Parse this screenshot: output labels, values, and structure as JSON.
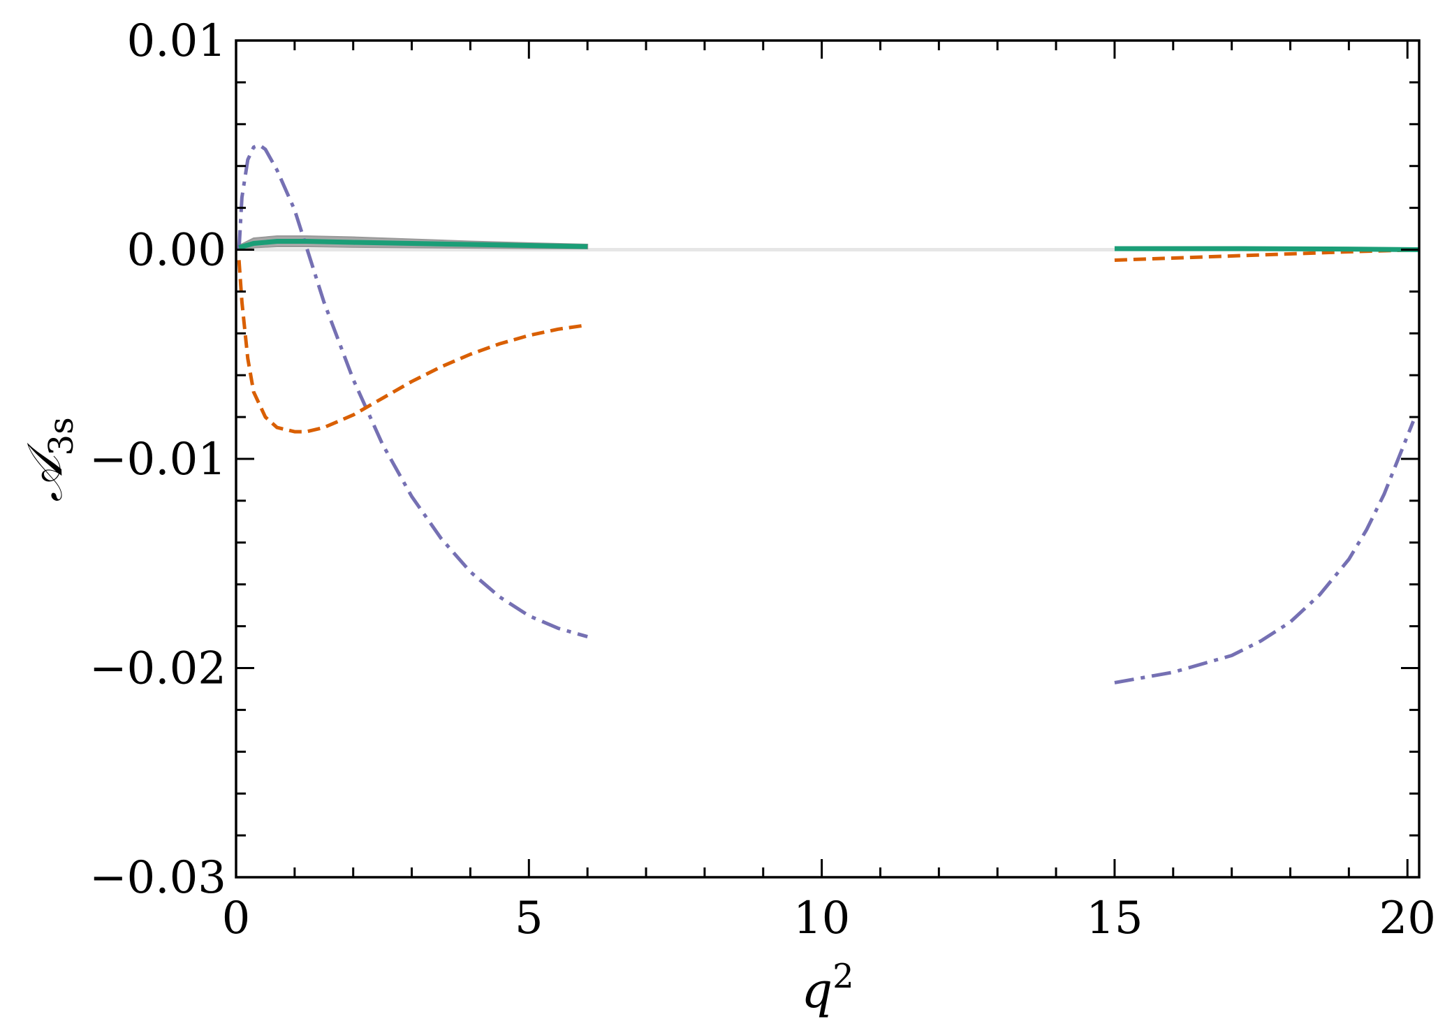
{
  "chart_data": {
    "type": "line",
    "title": "",
    "xlabel": {
      "base": "q",
      "sup": "2"
    },
    "ylabel": {
      "base": "𝒜",
      "sub": "3s"
    },
    "xlim": [
      0,
      20.2
    ],
    "ylim": [
      -0.03,
      0.01
    ],
    "x_ticks": [
      {
        "value": 0,
        "label": "0"
      },
      {
        "value": 5,
        "label": "5"
      },
      {
        "value": 10,
        "label": "10"
      },
      {
        "value": 15,
        "label": "15"
      },
      {
        "value": 20,
        "label": "20"
      }
    ],
    "y_ticks": [
      {
        "value": 0.01,
        "label": "0.01"
      },
      {
        "value": 0.0,
        "label": "0.00"
      },
      {
        "value": -0.01,
        "label": "−0.01"
      },
      {
        "value": -0.02,
        "label": "−0.02"
      },
      {
        "value": -0.03,
        "label": "−0.03"
      }
    ],
    "x_minor_step": 1,
    "y_minor_step": 0.002,
    "grid": false,
    "colors": {
      "dashdot": "#7570b3",
      "dashed": "#d95f02",
      "solid": "#1b9e77",
      "band": "#999999",
      "zero_line": "#e6e6e6"
    },
    "series": [
      {
        "style": "dashdot",
        "color": "#7570b3",
        "segments": [
          {
            "x": [
              0.05,
              0.1,
              0.2,
              0.3,
              0.4,
              0.5,
              0.7,
              1.0,
              1.5,
              2.0,
              2.5,
              3.0,
              3.5,
              4.0,
              4.5,
              5.0,
              5.5,
              6.0
            ],
            "y": [
              0.0,
              0.0025,
              0.0043,
              0.0049,
              0.005,
              0.0048,
              0.0038,
              0.0019,
              -0.0025,
              -0.0062,
              -0.0093,
              -0.0118,
              -0.0138,
              -0.0154,
              -0.0166,
              -0.0175,
              -0.0181,
              -0.0185
            ]
          },
          {
            "x": [
              15.0,
              16.0,
              17.0,
              17.5,
              18.0,
              18.5,
              19.0,
              19.3,
              19.6,
              19.9,
              20.1
            ],
            "y": [
              -0.0207,
              -0.0202,
              -0.0194,
              -0.0187,
              -0.0178,
              -0.0165,
              -0.0148,
              -0.0134,
              -0.0117,
              -0.0096,
              -0.0082
            ]
          }
        ]
      },
      {
        "style": "dashed",
        "color": "#d95f02",
        "segments": [
          {
            "x": [
              0.05,
              0.1,
              0.2,
              0.3,
              0.5,
              0.7,
              1.0,
              1.2,
              1.5,
              2.0,
              2.5,
              3.0,
              3.5,
              4.0,
              4.5,
              5.0,
              5.5,
              6.0
            ],
            "y": [
              -0.0005,
              -0.0025,
              -0.0052,
              -0.0068,
              -0.008,
              -0.0085,
              -0.0087,
              -0.0087,
              -0.0085,
              -0.0079,
              -0.0071,
              -0.0063,
              -0.0056,
              -0.005,
              -0.0045,
              -0.0041,
              -0.0038,
              -0.0036
            ]
          },
          {
            "x": [
              15.0,
              16.0,
              17.0,
              18.0,
              19.0,
              20.0,
              20.2
            ],
            "y": [
              -0.0005,
              -0.0004,
              -0.0003,
              -0.0002,
              -0.0001,
              -2e-05,
              0.0
            ]
          }
        ]
      },
      {
        "style": "solid",
        "color": "#1b9e77",
        "segments": [
          {
            "x": [
              0.05,
              0.3,
              0.7,
              1.2,
              2.0,
              3.0,
              4.0,
              5.0,
              6.0
            ],
            "y": [
              0.0001,
              0.0003,
              0.0004,
              0.0004,
              0.00035,
              0.0003,
              0.00025,
              0.0002,
              0.00015
            ]
          },
          {
            "x": [
              15.0,
              17.0,
              19.0,
              20.2
            ],
            "y": [
              5e-05,
              5e-05,
              3e-05,
              0.0
            ]
          }
        ]
      }
    ],
    "band": {
      "x": [
        0.05,
        0.3,
        0.7,
        1.2,
        2.0,
        3.0,
        4.0,
        5.0,
        6.0
      ],
      "upper": [
        0.0002,
        0.00055,
        0.00065,
        0.00065,
        0.0006,
        0.0005,
        0.0004,
        0.00032,
        0.00025
      ],
      "lower": [
        0.0,
        0.0001,
        0.00015,
        0.00015,
        0.00012,
        0.0001,
        8e-05,
        6e-05,
        5e-05
      ]
    }
  }
}
